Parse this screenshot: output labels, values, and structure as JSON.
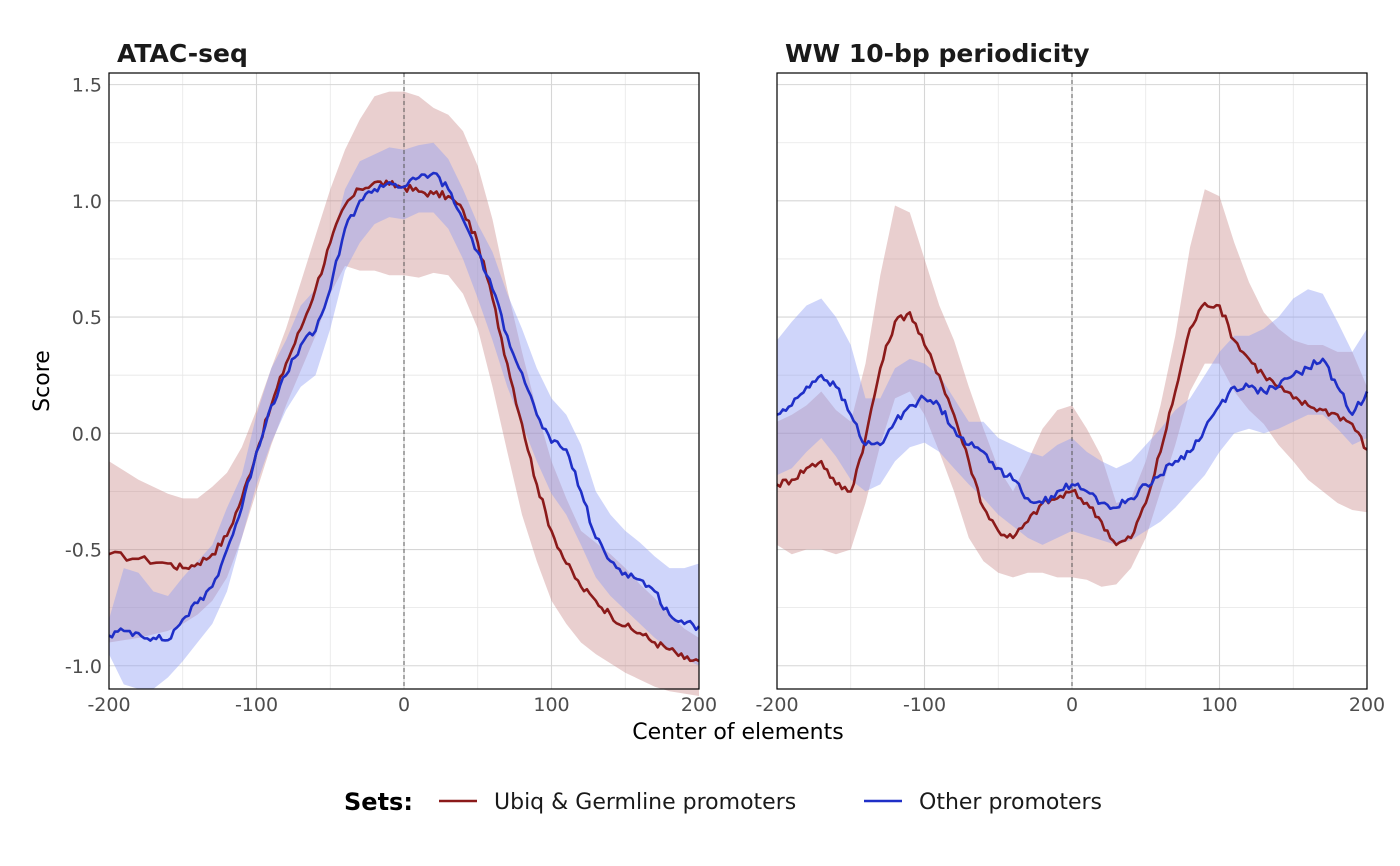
{
  "chart_data": {
    "type": "line",
    "shared": {
      "xlabel": "Center of elements",
      "ylabel": "Score",
      "xlim": [
        -200,
        200
      ],
      "ylim": [
        -1.1,
        1.55
      ],
      "x_ticks": [
        -200,
        -100,
        0,
        100,
        200
      ],
      "x_tick_labels": [
        "-200",
        "-100",
        "0",
        "100",
        "200"
      ],
      "y_ticks": [
        -1.0,
        -0.5,
        0.0,
        0.5,
        1.0,
        1.5
      ],
      "y_tick_labels": [
        "-1.0",
        "-0.5",
        "0.0",
        "0.5",
        "1.0",
        "1.5"
      ],
      "vline_at": 0,
      "grid": true
    },
    "legend": {
      "title": "Sets:",
      "position": "bottom",
      "entries": [
        {
          "label": "Ubiq & Germline promoters",
          "color": "#8b1a1a"
        },
        {
          "label": "Other promoters",
          "color": "#1f2fc7"
        }
      ]
    },
    "panels": [
      {
        "title": "ATAC-seq",
        "series": [
          {
            "name": "Ubiq & Germline promoters",
            "color": "#8b1a1a",
            "band_color": "#e7c3c3",
            "x": [
              -200,
              -180,
              -160,
              -150,
              -140,
              -130,
              -120,
              -110,
              -100,
              -90,
              -80,
              -70,
              -60,
              -50,
              -40,
              -30,
              -20,
              -10,
              0,
              10,
              20,
              30,
              40,
              50,
              60,
              70,
              80,
              90,
              100,
              110,
              120,
              130,
              140,
              150,
              160,
              170,
              180,
              190,
              200
            ],
            "y": [
              -0.52,
              -0.54,
              -0.56,
              -0.58,
              -0.56,
              -0.52,
              -0.44,
              -0.28,
              -0.08,
              0.12,
              0.3,
              0.45,
              0.62,
              0.82,
              0.98,
              1.05,
              1.08,
              1.07,
              1.06,
              1.04,
              1.03,
              1.02,
              0.96,
              0.82,
              0.58,
              0.3,
              0.04,
              -0.22,
              -0.42,
              -0.56,
              -0.66,
              -0.72,
              -0.78,
              -0.83,
              -0.86,
              -0.9,
              -0.93,
              -0.97,
              -0.98
            ],
            "lower": [
              -0.9,
              -0.88,
              -0.85,
              -0.82,
              -0.78,
              -0.72,
              -0.62,
              -0.45,
              -0.25,
              -0.05,
              0.12,
              0.27,
              0.42,
              0.6,
              0.72,
              0.7,
              0.7,
              0.68,
              0.68,
              0.67,
              0.69,
              0.68,
              0.6,
              0.45,
              0.2,
              -0.08,
              -0.35,
              -0.55,
              -0.72,
              -0.82,
              -0.9,
              -0.95,
              -0.99,
              -1.03,
              -1.06,
              -1.09,
              -1.11,
              -1.12,
              -1.13
            ],
            "upper": [
              -0.12,
              -0.2,
              -0.26,
              -0.28,
              -0.28,
              -0.23,
              -0.17,
              -0.06,
              0.1,
              0.28,
              0.45,
              0.65,
              0.85,
              1.05,
              1.22,
              1.35,
              1.45,
              1.47,
              1.47,
              1.45,
              1.4,
              1.37,
              1.3,
              1.15,
              0.92,
              0.62,
              0.35,
              0.1,
              -0.12,
              -0.28,
              -0.42,
              -0.47,
              -0.52,
              -0.58,
              -0.65,
              -0.71,
              -0.78,
              -0.84,
              -0.88
            ]
          },
          {
            "name": "Other promoters",
            "color": "#1f2fc7",
            "band_color": "#c4ccf6",
            "x": [
              -200,
              -190,
              -180,
              -170,
              -160,
              -150,
              -140,
              -130,
              -120,
              -110,
              -100,
              -90,
              -80,
              -70,
              -60,
              -50,
              -40,
              -30,
              -20,
              -10,
              0,
              10,
              20,
              30,
              40,
              50,
              60,
              70,
              80,
              90,
              100,
              110,
              120,
              130,
              140,
              150,
              160,
              170,
              180,
              190,
              200
            ],
            "y": [
              -0.87,
              -0.85,
              -0.86,
              -0.88,
              -0.89,
              -0.8,
              -0.73,
              -0.66,
              -0.5,
              -0.32,
              -0.08,
              0.12,
              0.25,
              0.38,
              0.44,
              0.62,
              0.88,
              1.0,
              1.05,
              1.08,
              1.06,
              1.1,
              1.12,
              1.05,
              0.92,
              0.78,
              0.62,
              0.42,
              0.26,
              0.08,
              -0.04,
              -0.07,
              -0.25,
              -0.45,
              -0.55,
              -0.6,
              -0.63,
              -0.68,
              -0.78,
              -0.82,
              -0.83
            ],
            "lower": [
              -0.95,
              -1.08,
              -1.1,
              -1.1,
              -1.05,
              -0.98,
              -0.9,
              -0.82,
              -0.68,
              -0.45,
              -0.22,
              -0.04,
              0.1,
              0.2,
              0.25,
              0.45,
              0.7,
              0.82,
              0.9,
              0.93,
              0.92,
              0.95,
              0.95,
              0.88,
              0.75,
              0.58,
              0.4,
              0.2,
              0.04,
              -0.12,
              -0.26,
              -0.35,
              -0.48,
              -0.62,
              -0.7,
              -0.76,
              -0.82,
              -0.88,
              -0.93,
              -0.97,
              -1.0
            ],
            "upper": [
              -0.8,
              -0.58,
              -0.6,
              -0.68,
              -0.7,
              -0.62,
              -0.55,
              -0.48,
              -0.32,
              -0.18,
              0.08,
              0.28,
              0.4,
              0.55,
              0.62,
              0.8,
              1.05,
              1.17,
              1.2,
              1.23,
              1.22,
              1.24,
              1.25,
              1.18,
              1.05,
              0.9,
              0.78,
              0.6,
              0.45,
              0.28,
              0.15,
              0.08,
              -0.05,
              -0.25,
              -0.35,
              -0.42,
              -0.47,
              -0.53,
              -0.58,
              -0.58,
              -0.56
            ]
          }
        ]
      },
      {
        "title": "WW 10-bp periodicity",
        "series": [
          {
            "name": "Ubiq & Germline promoters",
            "color": "#8b1a1a",
            "band_color": "#e7c3c3",
            "x": [
              -200,
              -190,
              -180,
              -170,
              -160,
              -150,
              -140,
              -130,
              -120,
              -110,
              -100,
              -90,
              -80,
              -70,
              -60,
              -50,
              -40,
              -30,
              -20,
              -10,
              0,
              10,
              20,
              30,
              40,
              50,
              60,
              70,
              80,
              90,
              100,
              110,
              120,
              130,
              140,
              150,
              160,
              170,
              180,
              190,
              200
            ],
            "y": [
              -0.22,
              -0.2,
              -0.15,
              -0.12,
              -0.22,
              -0.25,
              -0.02,
              0.28,
              0.48,
              0.52,
              0.38,
              0.25,
              0.08,
              -0.12,
              -0.32,
              -0.42,
              -0.45,
              -0.38,
              -0.3,
              -0.28,
              -0.25,
              -0.3,
              -0.38,
              -0.48,
              -0.45,
              -0.3,
              -0.08,
              0.18,
              0.45,
              0.56,
              0.55,
              0.4,
              0.32,
              0.25,
              0.2,
              0.15,
              0.12,
              0.1,
              0.08,
              0.04,
              -0.07
            ],
            "lower": [
              -0.48,
              -0.52,
              -0.5,
              -0.5,
              -0.52,
              -0.5,
              -0.3,
              -0.05,
              0.15,
              0.18,
              0.08,
              -0.08,
              -0.25,
              -0.45,
              -0.55,
              -0.6,
              -0.62,
              -0.6,
              -0.6,
              -0.62,
              -0.62,
              -0.63,
              -0.66,
              -0.65,
              -0.58,
              -0.45,
              -0.25,
              -0.05,
              0.18,
              0.3,
              0.3,
              0.18,
              0.1,
              0.04,
              -0.05,
              -0.12,
              -0.2,
              -0.25,
              -0.3,
              -0.33,
              -0.34
            ],
            "upper": [
              0.05,
              0.08,
              0.12,
              0.18,
              0.1,
              0.05,
              0.3,
              0.68,
              0.98,
              0.95,
              0.75,
              0.55,
              0.4,
              0.2,
              0.02,
              -0.15,
              -0.25,
              -0.12,
              0.02,
              0.1,
              0.12,
              0.02,
              -0.1,
              -0.3,
              -0.28,
              -0.12,
              0.12,
              0.42,
              0.8,
              1.05,
              1.02,
              0.82,
              0.65,
              0.52,
              0.45,
              0.4,
              0.38,
              0.38,
              0.35,
              0.35,
              0.2
            ]
          },
          {
            "name": "Other promoters",
            "color": "#1f2fc7",
            "band_color": "#c4ccf6",
            "x": [
              -200,
              -190,
              -180,
              -170,
              -160,
              -150,
              -140,
              -130,
              -120,
              -110,
              -100,
              -90,
              -80,
              -70,
              -60,
              -50,
              -40,
              -30,
              -20,
              -10,
              0,
              10,
              20,
              30,
              40,
              50,
              60,
              70,
              80,
              90,
              100,
              110,
              120,
              130,
              140,
              150,
              160,
              170,
              180,
              190,
              200
            ],
            "y": [
              0.08,
              0.12,
              0.2,
              0.25,
              0.2,
              0.08,
              -0.05,
              -0.05,
              0.05,
              0.12,
              0.15,
              0.12,
              0.02,
              -0.05,
              -0.08,
              -0.15,
              -0.2,
              -0.28,
              -0.3,
              -0.25,
              -0.22,
              -0.25,
              -0.3,
              -0.32,
              -0.28,
              -0.22,
              -0.18,
              -0.12,
              -0.08,
              0.02,
              0.12,
              0.2,
              0.2,
              0.18,
              0.2,
              0.25,
              0.28,
              0.32,
              0.2,
              0.08,
              0.18
            ],
            "lower": [
              -0.18,
              -0.15,
              -0.08,
              -0.02,
              -0.1,
              -0.2,
              -0.25,
              -0.22,
              -0.12,
              -0.06,
              -0.04,
              -0.08,
              -0.15,
              -0.22,
              -0.28,
              -0.35,
              -0.4,
              -0.45,
              -0.48,
              -0.45,
              -0.42,
              -0.44,
              -0.46,
              -0.48,
              -0.46,
              -0.42,
              -0.38,
              -0.32,
              -0.25,
              -0.18,
              -0.08,
              0.0,
              0.02,
              0.0,
              0.02,
              0.05,
              0.08,
              0.08,
              0.02,
              -0.05,
              -0.02
            ],
            "upper": [
              0.4,
              0.48,
              0.55,
              0.58,
              0.5,
              0.38,
              0.15,
              0.15,
              0.28,
              0.32,
              0.3,
              0.25,
              0.15,
              0.05,
              0.05,
              -0.02,
              -0.05,
              -0.08,
              -0.1,
              -0.05,
              -0.02,
              -0.08,
              -0.12,
              -0.15,
              -0.12,
              -0.05,
              0.02,
              0.1,
              0.15,
              0.25,
              0.35,
              0.42,
              0.42,
              0.45,
              0.5,
              0.58,
              0.62,
              0.6,
              0.48,
              0.35,
              0.45
            ]
          }
        ]
      }
    ]
  }
}
